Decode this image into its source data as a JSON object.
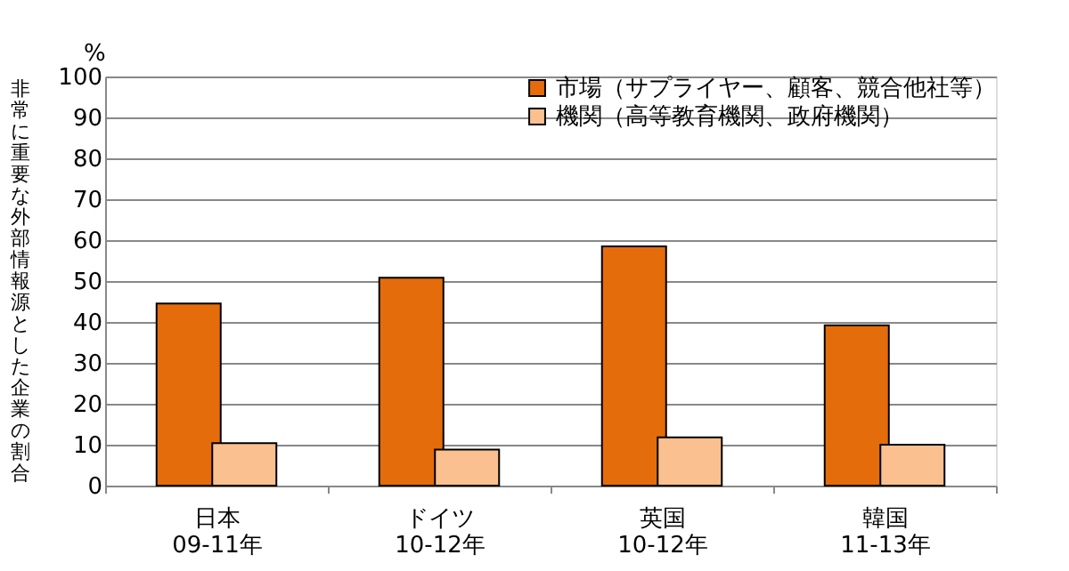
{
  "chart_data": {
    "type": "bar",
    "ylabel": "非常に重要な外部情報源とした企業の割合",
    "annotations": [
      "%"
    ],
    "categories": [
      "日本\n09-11年",
      "ドイツ\n10-12年",
      "英国\n10-12年",
      "韓国\n11-13年"
    ],
    "series": [
      {
        "name": "市場（サプライヤー、顧客、競合他社等）",
        "color": "#e46c0a",
        "values": [
          44.5,
          50.8,
          58.5,
          39.2
        ]
      },
      {
        "name": "機関（高等教育機関、政府機関）",
        "color": "#fac090",
        "values": [
          10.4,
          8.8,
          11.8,
          10.0
        ]
      }
    ],
    "ylim": [
      0,
      100
    ],
    "yticks": [
      0,
      10,
      20,
      30,
      40,
      50,
      60,
      70,
      80,
      90,
      100
    ],
    "grid": "y",
    "legend": "top right"
  }
}
